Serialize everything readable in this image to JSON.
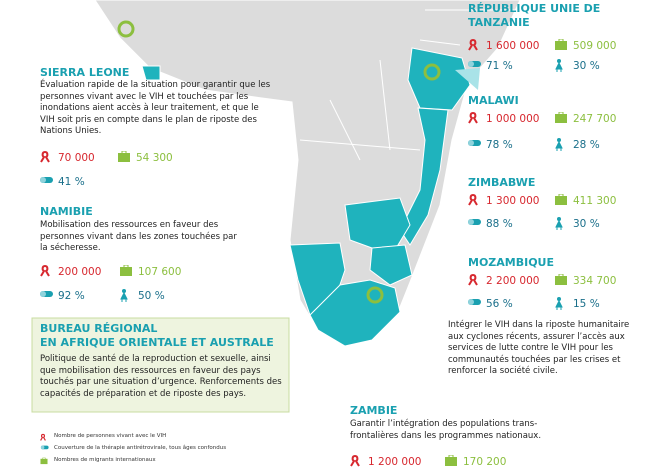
{
  "countries": [
    {
      "name": "SIERRA LEONE",
      "text": "Évaluation rapide de la situation pour garantir que les personnes vivant avec le VIH et touchées par les inondations aient accès à leur traitement, et que le VIH soit pris en compte dans le plan de riposte des Nations Unies.",
      "hiv": "70 000",
      "migrants": "54 300",
      "art": "41 %"
    },
    {
      "name": "NAMIBIE",
      "text": "Mobilisation des ressources en faveur des personnes vivant dans les zones touchées par la sécheresse.",
      "hiv": "200 000",
      "migrants": "107 600",
      "art": "92 %",
      "women": "50 %"
    },
    {
      "name": "RÉPUBLIQUE UNIE DE TANZANIE",
      "hiv": "1 600 000",
      "migrants": "509 000",
      "art": "71 %",
      "women": "30 %"
    },
    {
      "name": "MALAWI",
      "hiv": "1 000 000",
      "migrants": "247 700",
      "art": "78 %",
      "women": "28 %"
    },
    {
      "name": "ZIMBABWE",
      "hiv": "1 300 000",
      "migrants": "411 300",
      "art": "88 %",
      "women": "30 %"
    },
    {
      "name": "MOZAMBIQUE",
      "text": "Intégrer le VIH dans la riposte humanitaire aux cyclones récents, assurer l’accès aux services de lutte contre le VIH pour les communautés touchées par les crises et renforcer la société civile.",
      "hiv": "2 200 000",
      "migrants": "334 700",
      "art": "56 %",
      "women": "15 %"
    },
    {
      "name": "ZAMBIE",
      "text": "Garantir l’intégration des populations trans-frontalières dans les programmes nationaux.",
      "hiv": "1 200 000",
      "migrants": "170 200"
    }
  ],
  "regional": {
    "title": [
      "BUREAU RÉGIONAL",
      "EN AFRIQUE ORIENTALE ET AUSTRALE"
    ],
    "text": "Politique de santé de la reproduction et sexuelle, ainsi que mobilisation des ressources en faveur des pays touchés par une situation d’urgence. Renforcements des capacités de préparation et de riposte des pays."
  },
  "legend": [
    "Nombre de personnes vivant avec le VIH",
    "Couverture de la thérapie antirétrovirale, tous âges confondus",
    "Nombres de migrants internationaux"
  ]
}
